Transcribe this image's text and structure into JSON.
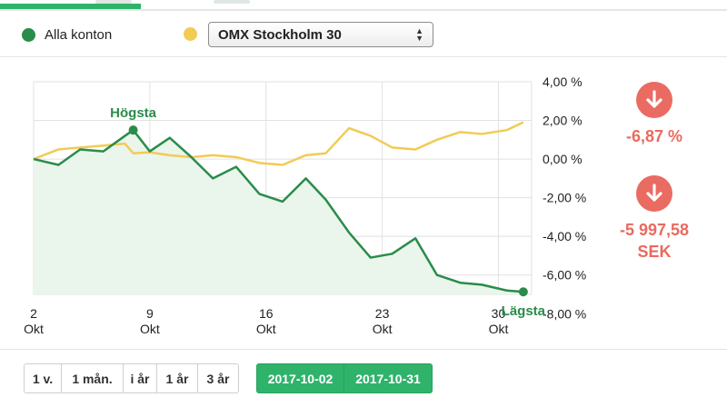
{
  "legend": {
    "series_a_label": "Alla konton",
    "series_b_select": "OMX Stockholm 30"
  },
  "colors": {
    "green": "#2a8c4a",
    "green_fill": "#eaf5ec",
    "yellow": "#f2cb55",
    "negative": "#e96a5f",
    "accent": "#2fb36b"
  },
  "stats": {
    "percent": "-6,87 %",
    "amount_line1": "-5 997,58",
    "amount_line2": "SEK",
    "icon": "arrow-down-icon"
  },
  "buttons": {
    "ranges": [
      "1 v.",
      "1 mån.",
      "i år",
      "1 år",
      "3 år"
    ],
    "date_from": "2017-10-02",
    "date_to": "2017-10-31"
  },
  "chart_data": {
    "type": "line",
    "x_unit": "day of October 2017",
    "xlim": [
      2,
      32
    ],
    "ylim": [
      -7,
      4
    ],
    "y_ticks": [
      4,
      2,
      0,
      -2,
      -4,
      -6,
      -8
    ],
    "y_tick_labels": [
      "4,00 %",
      "2,00 %",
      "0,00 %",
      "-2,00 %",
      "-4,00 %",
      "-6,00 %",
      "-8,00 %"
    ],
    "x_ticks": [
      2,
      9,
      16,
      23,
      30
    ],
    "x_tick_labels": [
      [
        "2",
        "Okt"
      ],
      [
        "9",
        "Okt"
      ],
      [
        "16",
        "Okt"
      ],
      [
        "23",
        "Okt"
      ],
      [
        "30",
        "Okt"
      ]
    ],
    "grid": true,
    "annotations": [
      {
        "text": "Högsta",
        "x": 8,
        "y": 1.5
      },
      {
        "text": "Lägsta",
        "x": 31.5,
        "y": -6.87
      }
    ],
    "series": [
      {
        "name": "Alla konton",
        "x": [
          2,
          3.5,
          4.8,
          6.2,
          7.5,
          8,
          9,
          10.2,
          11.5,
          12.8,
          14.2,
          15.6,
          17,
          18.4,
          19.6,
          21,
          22.3,
          23.6,
          25,
          26.3,
          27.7,
          29,
          30.5,
          31.5
        ],
        "values": [
          0,
          -0.3,
          0.5,
          0.4,
          1.2,
          1.5,
          0.4,
          1.1,
          0.1,
          -1.0,
          -0.4,
          -1.8,
          -2.2,
          -1.0,
          -2.1,
          -3.8,
          -5.1,
          -4.9,
          -4.1,
          -6.0,
          -6.4,
          -6.5,
          -6.8,
          -6.87
        ]
      },
      {
        "name": "OMX Stockholm 30",
        "x": [
          2,
          3.5,
          4.8,
          6.2,
          7.5,
          8,
          9,
          10.2,
          11.5,
          12.8,
          14.2,
          15.6,
          17,
          18.4,
          19.6,
          21,
          22.3,
          23.6,
          25,
          26.3,
          27.7,
          29,
          30.5,
          31.5
        ],
        "values": [
          0,
          0.5,
          0.6,
          0.7,
          0.8,
          0.3,
          0.35,
          0.2,
          0.1,
          0.2,
          0.1,
          -0.2,
          -0.3,
          0.2,
          0.3,
          1.6,
          1.2,
          0.6,
          0.5,
          1.0,
          1.4,
          1.3,
          1.5,
          1.9
        ]
      }
    ]
  }
}
